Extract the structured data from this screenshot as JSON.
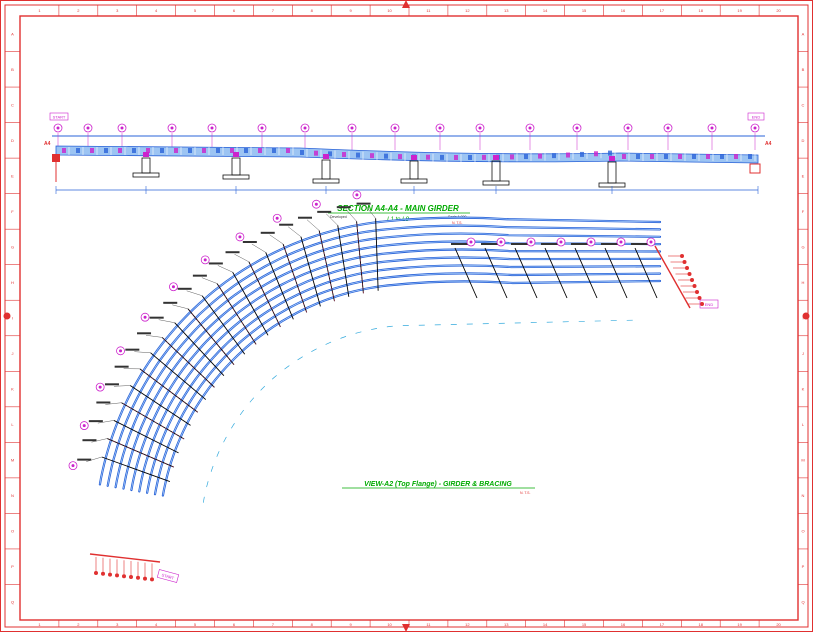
{
  "section_title": "SECTION A4-A4 - MAIN GIRDER",
  "section_subtitle": "L1 to L8",
  "section_left_note": "Developed",
  "section_right_note": "Scale 1:200",
  "section_scale": "N. T.S.",
  "view_title": "VIEW-A2 (Top Flange) - GIRDER & BRACING",
  "view_scale": "N. T.S.",
  "start_label": "START",
  "end_label": "END",
  "axis_end_marks": [
    "A4",
    "A4"
  ],
  "column_numbers": [
    "1",
    "2",
    "3",
    "4",
    "5",
    "6",
    "7",
    "8",
    "9",
    "10",
    "11",
    "12",
    "13",
    "14",
    "15",
    "16",
    "17",
    "18",
    "19",
    "20"
  ],
  "row_letters": [
    "A",
    "B",
    "C",
    "D",
    "E",
    "F",
    "G",
    "H",
    "I",
    "J",
    "K",
    "L",
    "M",
    "N",
    "O",
    "P",
    "Q"
  ],
  "colors": {
    "frame": "#e03030",
    "girder": "#2a63d8",
    "girder_fill": "#7fb3f0",
    "bracing": "#000000",
    "bubble": "#cc22cc",
    "title": "#00aa00",
    "pier": "#111111"
  }
}
